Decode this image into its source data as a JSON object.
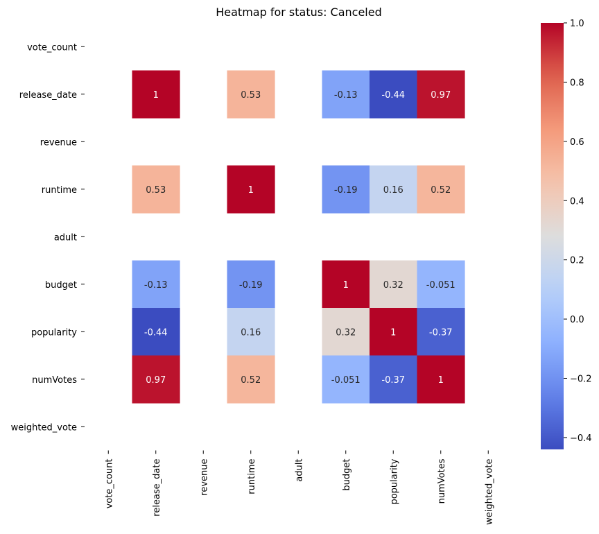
{
  "chart_data": {
    "type": "heatmap",
    "title": "Heatmap for status: Canceled",
    "row_labels": [
      "vote_count",
      "release_date",
      "revenue",
      "runtime",
      "adult",
      "budget",
      "popularity",
      "numVotes",
      "weighted_vote"
    ],
    "col_labels": [
      "vote_count",
      "release_date",
      "revenue",
      "runtime",
      "adult",
      "budget",
      "popularity",
      "numVotes",
      "weighted_vote"
    ],
    "matrix": [
      [
        null,
        null,
        null,
        null,
        null,
        null,
        null,
        null,
        null
      ],
      [
        null,
        1,
        null,
        0.53,
        null,
        -0.13,
        -0.44,
        0.97,
        null
      ],
      [
        null,
        null,
        null,
        null,
        null,
        null,
        null,
        null,
        null
      ],
      [
        null,
        0.53,
        null,
        1,
        null,
        -0.19,
        0.16,
        0.52,
        null
      ],
      [
        null,
        null,
        null,
        null,
        null,
        null,
        null,
        null,
        null
      ],
      [
        null,
        -0.13,
        null,
        -0.19,
        null,
        1,
        0.32,
        -0.051,
        null
      ],
      [
        null,
        -0.44,
        null,
        0.16,
        null,
        0.32,
        1,
        -0.37,
        null
      ],
      [
        null,
        0.97,
        null,
        0.52,
        null,
        -0.051,
        -0.37,
        1,
        null
      ],
      [
        null,
        null,
        null,
        null,
        null,
        null,
        null,
        null,
        null
      ]
    ],
    "cell_text": [
      [
        "",
        "",
        "",
        "",
        "",
        "",
        "",
        "",
        ""
      ],
      [
        "",
        "1",
        "",
        "0.53",
        "",
        "-0.13",
        "-0.44",
        "0.97",
        ""
      ],
      [
        "",
        "",
        "",
        "",
        "",
        "",
        "",
        "",
        ""
      ],
      [
        "",
        "0.53",
        "",
        "1",
        "",
        "-0.19",
        "0.16",
        "0.52",
        ""
      ],
      [
        "",
        "",
        "",
        "",
        "",
        "",
        "",
        "",
        ""
      ],
      [
        "",
        "-0.13",
        "",
        "-0.19",
        "",
        "1",
        "0.32",
        "-0.051",
        ""
      ],
      [
        "",
        "-0.44",
        "",
        "0.16",
        "",
        "0.32",
        "1",
        "-0.37",
        ""
      ],
      [
        "",
        "0.97",
        "",
        "0.52",
        "",
        "-0.051",
        "-0.37",
        "1",
        ""
      ],
      [
        "",
        "",
        "",
        "",
        "",
        "",
        "",
        "",
        ""
      ]
    ],
    "colormap": "coolwarm",
    "colorbar": {
      "min": -0.44,
      "max": 1.0,
      "ticks": [
        1.0,
        0.8,
        0.6,
        0.4,
        0.2,
        0.0,
        -0.2,
        -0.4
      ],
      "tick_labels": [
        "1.0",
        "0.8",
        "0.6",
        "0.4",
        "0.2",
        "0.0",
        "−0.2",
        "−0.4"
      ]
    },
    "annotated": true
  }
}
